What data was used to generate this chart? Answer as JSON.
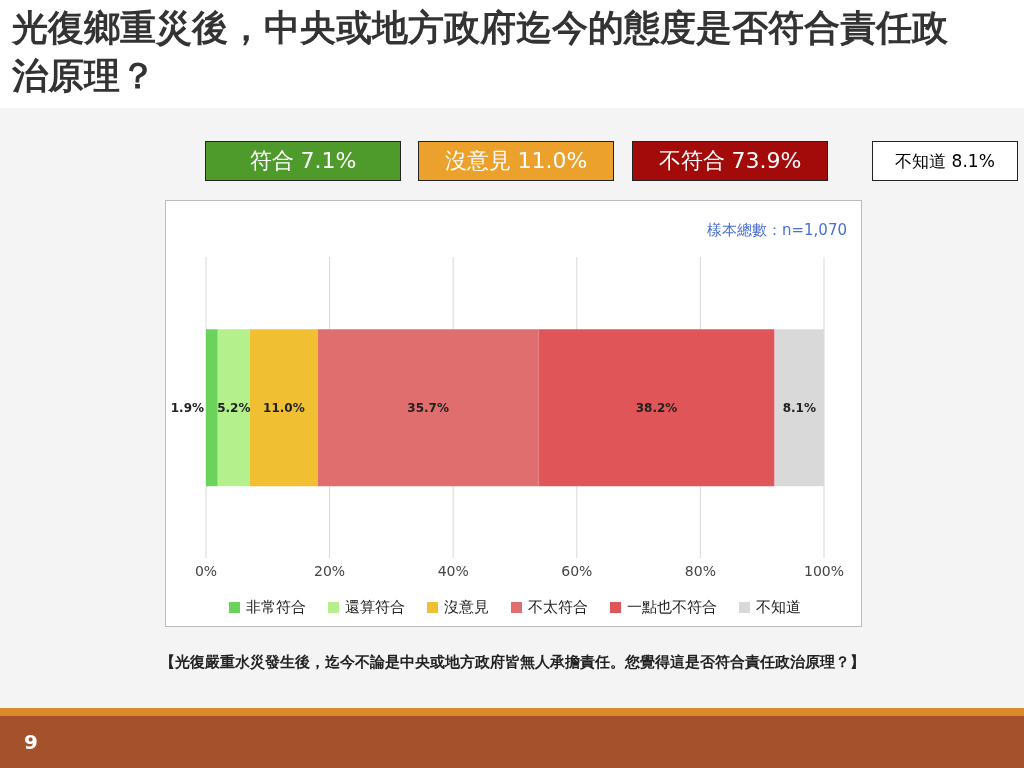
{
  "chart_data": {
    "type": "bar",
    "orientation": "horizontal",
    "stacked": true,
    "title": "光復鄉重災後，中央或地方政府迄今的態度是否符合責任政治原理？",
    "categories": [
      null
    ],
    "series": [
      {
        "name": "非常符合",
        "color": "#6bd35b",
        "values": [
          1.9
        ],
        "value_labels": [
          "1.9%"
        ]
      },
      {
        "name": "還算符合",
        "color": "#b4f08c",
        "values": [
          5.2
        ],
        "value_labels": [
          "5.2%"
        ]
      },
      {
        "name": "沒意見",
        "color": "#f0bf32",
        "values": [
          11.0
        ],
        "value_labels": [
          "11.0%"
        ]
      },
      {
        "name": "不太符合",
        "color": "#e06e6e",
        "values": [
          35.7
        ],
        "value_labels": [
          "35.7%"
        ]
      },
      {
        "name": "一點也不符合",
        "color": "#e05658",
        "values": [
          38.2
        ],
        "value_labels": [
          "38.2%"
        ]
      },
      {
        "name": "不知道",
        "color": "#d9d9d9",
        "values": [
          8.1
        ],
        "value_labels": [
          "8.1%"
        ]
      }
    ],
    "xlim": [
      0,
      100
    ],
    "xticks": [
      {
        "value": 0,
        "label": "0%"
      },
      {
        "value": 20,
        "label": "20%"
      },
      {
        "value": 40,
        "label": "40%"
      },
      {
        "value": 60,
        "label": "60%"
      },
      {
        "value": 80,
        "label": "80%"
      },
      {
        "value": 100,
        "label": "100%"
      }
    ],
    "grid": "x",
    "legend": "bottom",
    "annotations": [
      "符合 7.1%",
      "沒意見 11.0%",
      "不符合 73.9%",
      "不知道 8.1%",
      "樣本總數：n=1,070",
      "【光復嚴重水災發生後，迄今不論是中央或地方政府皆無人承擔責任。您覺得這是否符合責任政治原理？】",
      "9"
    ]
  }
}
